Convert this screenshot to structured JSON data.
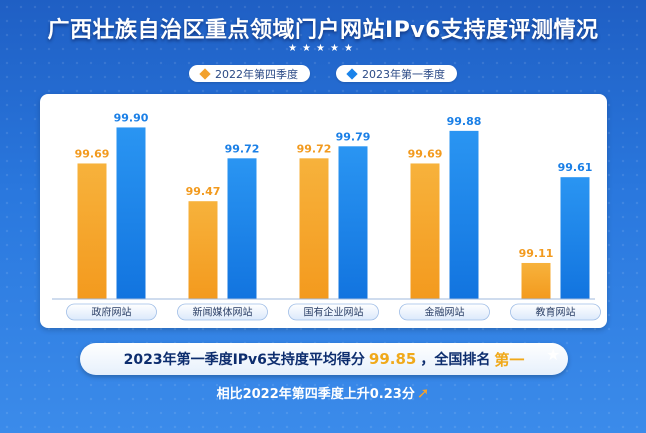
{
  "title": "广西壮族自治区重点领域门户网站IPv6支持度评测情况",
  "stars": "★★★★★",
  "colors": {
    "q4_2022": "#f2a12c",
    "q1_2023": "#1a83ea",
    "background": "#2a78de"
  },
  "chart_data": {
    "type": "bar",
    "title": "广西壮族自治区重点领域门户网站IPv6支持度评测情况",
    "categories": [
      "政府网站",
      "新闻媒体网站",
      "国有企业网站",
      "金融网站",
      "教育网站"
    ],
    "series": [
      {
        "name": "2022年第四季度",
        "values": [
          99.69,
          99.47,
          99.72,
          99.69,
          99.11
        ]
      },
      {
        "name": "2023年第一季度",
        "values": [
          99.9,
          99.72,
          99.79,
          99.88,
          99.61
        ]
      }
    ],
    "legend_position": "top-center",
    "grid": false,
    "value_labels": [
      "99.69",
      "99.47",
      "99.72",
      "99.69",
      "99.11",
      "99.90",
      "99.72",
      "99.79",
      "99.88",
      "99.61"
    ]
  },
  "summary": {
    "prefix": "2023年第一季度IPv6支持度平均得分",
    "score": "99.85",
    "middle": "，全国排名",
    "rank": "第一",
    "compare": "相比2022年第四季度上升0.23分",
    "arrow_icon": "up-arrow-icon"
  }
}
